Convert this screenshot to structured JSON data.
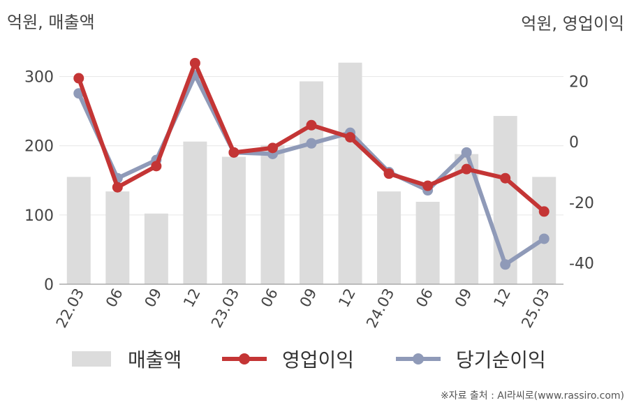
{
  "units": {
    "left": "억원, 매출액",
    "right": "억원, 영업이익"
  },
  "source_note": "※자료 출처 : AI라씨로(www.rassiro.com)",
  "colors": {
    "revenue": "#dcdcdc",
    "operating_profit": "#c43535",
    "net_income": "#8f9ab8",
    "grid": "#e6e6e6",
    "axis": "#aaaaaa",
    "tick_text": "#444444"
  },
  "chart_data": {
    "type": "bar+line",
    "categories": [
      "22.03",
      "06",
      "09",
      "12",
      "23.03",
      "06",
      "09",
      "12",
      "24.03",
      "06",
      "09",
      "12",
      "25.03"
    ],
    "left_axis": {
      "ylim": [
        0,
        350
      ],
      "ticks": [
        0,
        100,
        200,
        300
      ]
    },
    "right_axis": {
      "ylim": [
        -47,
        33
      ],
      "ticks": [
        20,
        0,
        -20,
        -40
      ]
    },
    "series": [
      {
        "name": "매출액",
        "kind": "bar",
        "axis": "left",
        "values": [
          155,
          134,
          102,
          206,
          184,
          201,
          293,
          320,
          134,
          119,
          188,
          243,
          155
        ]
      },
      {
        "name": "영업이익",
        "kind": "line",
        "axis": "right",
        "values": [
          21,
          -15,
          -8,
          26,
          -3.5,
          -2,
          5.5,
          1.5,
          -10.5,
          -14.5,
          -9,
          -12,
          -23
        ]
      },
      {
        "name": "당기순이익",
        "kind": "line",
        "axis": "right",
        "values": [
          16,
          -12,
          -6,
          22,
          -3.5,
          -4,
          -0.5,
          3,
          -10,
          -16,
          -3.5,
          -40.5,
          -32
        ]
      }
    ],
    "legend_position": "bottom",
    "grid": true
  }
}
